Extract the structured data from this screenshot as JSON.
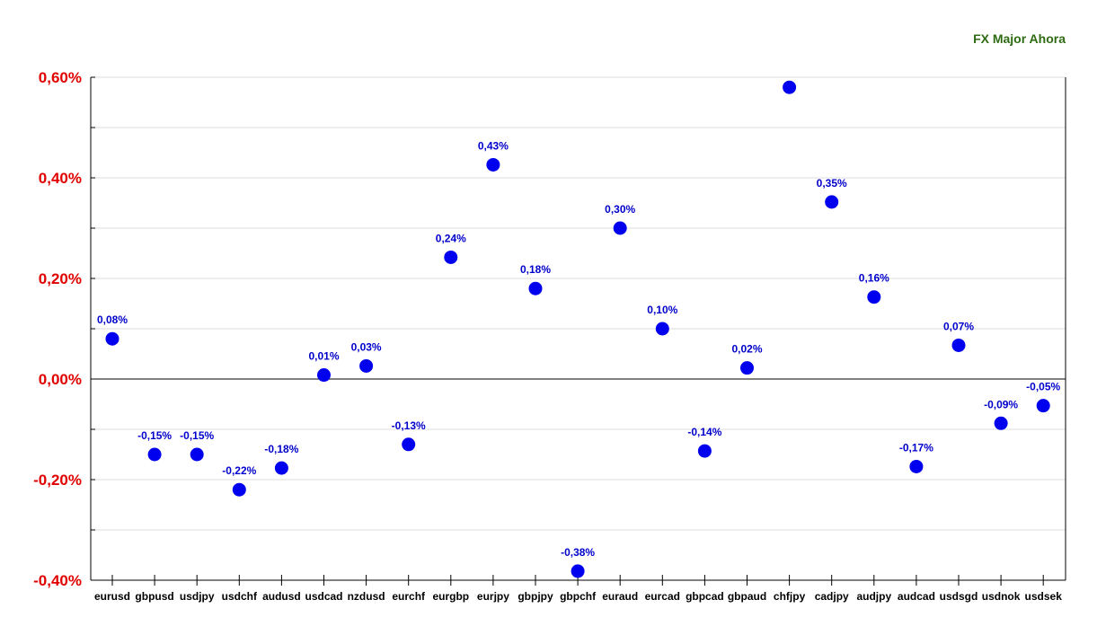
{
  "colors": {
    "title": "#2e6b12",
    "y_tick": "#e00000",
    "point": "#0000ee",
    "label": "#0000cc",
    "grid": "#dddddd",
    "axis": "#000000"
  },
  "chart_data": {
    "type": "scatter",
    "title": "FX Major Ahora",
    "xlabel": "",
    "ylabel": "",
    "ylim": [
      -0.4,
      0.6
    ],
    "grid": true,
    "y_ticks": [
      {
        "value": 0.6,
        "label": "0,60%"
      },
      {
        "value": 0.4,
        "label": "0,40%"
      },
      {
        "value": 0.2,
        "label": "0,20%"
      },
      {
        "value": 0.0,
        "label": "0,00%"
      },
      {
        "value": -0.2,
        "label": "-0,20%"
      },
      {
        "value": -0.4,
        "label": "-0,40%"
      }
    ],
    "categories": [
      "eurusd",
      "gbpusd",
      "usdjpy",
      "usdchf",
      "audusd",
      "usdcad",
      "nzdusd",
      "eurchf",
      "eurgbp",
      "eurjpy",
      "gbpjpy",
      "gbpchf",
      "euraud",
      "eurcad",
      "gbpcad",
      "gbpaud",
      "chfjpy",
      "cadjpy",
      "audjpy",
      "audcad",
      "usdsgd",
      "usdnok",
      "usdsek"
    ],
    "values": [
      0.08,
      -0.15,
      -0.15,
      -0.22,
      -0.177,
      0.008,
      0.026,
      -0.13,
      0.242,
      0.426,
      0.18,
      -0.382,
      0.3,
      0.1,
      -0.143,
      0.022,
      0.58,
      0.352,
      0.163,
      -0.174,
      0.067,
      -0.088,
      -0.053
    ],
    "labels": [
      "0,08%",
      "-0,15%",
      "-0,15%",
      "-0,22%",
      "-0,18%",
      "0,01%",
      "0,03%",
      "-0,13%",
      "0,24%",
      "0,43%",
      "0,18%",
      "-0,38%",
      "0,30%",
      "0,10%",
      "-0,14%",
      "0,02%",
      "",
      "0,35%",
      "0,16%",
      "-0,17%",
      "0,07%",
      "-0,09%",
      "-0,05%"
    ]
  }
}
